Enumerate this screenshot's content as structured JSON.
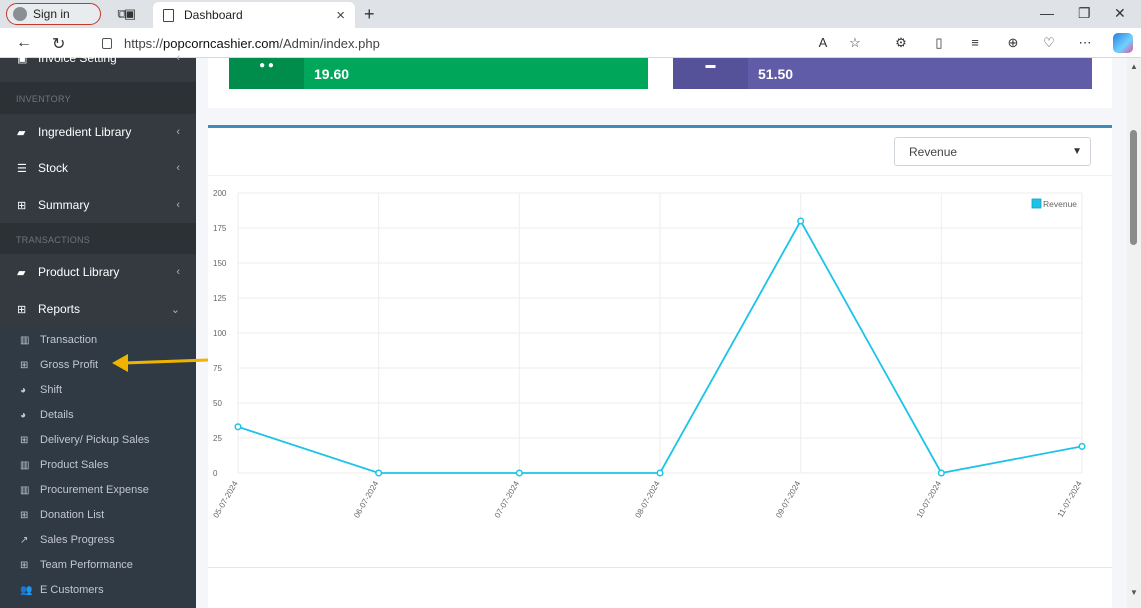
{
  "browser": {
    "signin_label": "Sign in",
    "tab_title": "Dashboard",
    "url_prefix": "https://",
    "url_host": "popcorncashier.com",
    "url_path": "/Admin/index.php"
  },
  "sidebar": {
    "items": [
      {
        "label": "Invoice Setting",
        "icon": "invoice-icon"
      },
      {
        "label": "Ingredient Library",
        "icon": "book-icon"
      },
      {
        "label": "Stock",
        "icon": "database-icon"
      },
      {
        "label": "Summary",
        "icon": "table-icon"
      },
      {
        "label": "Product Library",
        "icon": "book-icon"
      },
      {
        "label": "Reports",
        "icon": "table-icon"
      }
    ],
    "headers": {
      "inventory": "INVENTORY",
      "transactions": "TRANSACTIONS"
    },
    "reports_submenu": [
      {
        "label": "Transaction",
        "icon": "bar-chart-icon"
      },
      {
        "label": "Gross Profit",
        "icon": "table-icon"
      },
      {
        "label": "Shift",
        "icon": "pie-chart-icon"
      },
      {
        "label": "Details",
        "icon": "pie-chart-icon"
      },
      {
        "label": "Delivery/ Pickup Sales",
        "icon": "table-icon"
      },
      {
        "label": "Product Sales",
        "icon": "bar-chart-icon"
      },
      {
        "label": "Procurement Expense",
        "icon": "bar-chart-icon"
      },
      {
        "label": "Donation List",
        "icon": "table-icon"
      },
      {
        "label": "Sales Progress",
        "icon": "line-chart-icon"
      },
      {
        "label": "Team Performance",
        "icon": "table-icon"
      },
      {
        "label": "E Customers",
        "icon": "users-icon"
      }
    ]
  },
  "stats": [
    {
      "value": "19.60",
      "color": "#00a65a",
      "dark": "#008d4c"
    },
    {
      "value": "51.50",
      "color": "#605ca8",
      "dark": "#555299"
    }
  ],
  "chart_select": {
    "selected": "Revenue"
  },
  "chart_data": {
    "type": "line",
    "x": [
      "05-07-2024",
      "06-07-2024",
      "07-07-2024",
      "08-07-2024",
      "09-07-2024",
      "10-07-2024",
      "11-07-2024"
    ],
    "series": [
      {
        "name": "Revenue",
        "values": [
          33,
          0,
          0,
          0,
          180,
          0,
          19
        ],
        "color": "#1cc3e8"
      }
    ],
    "ylim": [
      0,
      200
    ],
    "yticks": [
      0,
      25,
      50,
      75,
      100,
      125,
      150,
      175,
      200
    ],
    "legend": "top-right",
    "grid": true
  }
}
